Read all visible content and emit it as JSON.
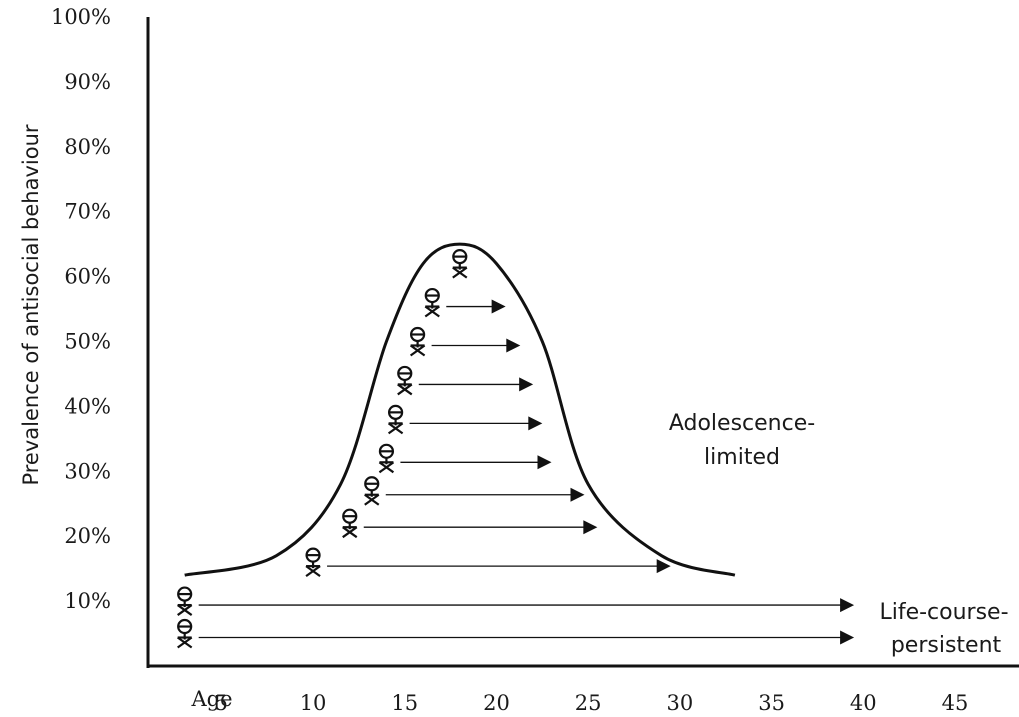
{
  "chart_data": {
    "type": "line",
    "ylabel": "Prevalence of antisocial behaviour",
    "y_ticks": [
      "10%",
      "20%",
      "30%",
      "40%",
      "50%",
      "60%",
      "70%",
      "80%",
      "90%",
      "100%"
    ],
    "ylim": [
      0,
      100
    ],
    "x_prefix": "Age",
    "x_ticks": [
      "5",
      "10",
      "15",
      "20",
      "25",
      "30",
      "35",
      "40",
      "45"
    ],
    "xlim": [
      1,
      48
    ],
    "grid": false,
    "series": [
      {
        "name": "Adolescence-limited",
        "curve": [
          {
            "x": 3,
            "y": 14
          },
          {
            "x": 8,
            "y": 17
          },
          {
            "x": 11.5,
            "y": 28
          },
          {
            "x": 14,
            "y": 50
          },
          {
            "x": 16,
            "y": 62
          },
          {
            "x": 18,
            "y": 65
          },
          {
            "x": 20,
            "y": 62
          },
          {
            "x": 22.5,
            "y": 50
          },
          {
            "x": 25,
            "y": 28
          },
          {
            "x": 29,
            "y": 17
          },
          {
            "x": 33,
            "y": 14
          }
        ]
      }
    ],
    "individuals": [
      {
        "onset": 3,
        "level": 3,
        "end": 39.5
      },
      {
        "onset": 3,
        "level": 8,
        "end": 39.5
      },
      {
        "onset": 10,
        "level": 14,
        "end": 29.5
      },
      {
        "onset": 12,
        "level": 20,
        "end": 25.5
      },
      {
        "onset": 13.2,
        "level": 25,
        "end": 24.8
      },
      {
        "onset": 14,
        "level": 30,
        "end": 23
      },
      {
        "onset": 14.5,
        "level": 36,
        "end": 22.5
      },
      {
        "onset": 15,
        "level": 42,
        "end": 22
      },
      {
        "onset": 15.7,
        "level": 48,
        "end": 21.3
      },
      {
        "onset": 16.5,
        "level": 54,
        "end": 20.5
      },
      {
        "onset": 18,
        "level": 60,
        "end": null
      }
    ],
    "annotations": {
      "adolescence_limited": [
        "Adolescence-",
        "limited"
      ],
      "life_course_persistent": [
        "Life-course-",
        "persistent"
      ]
    }
  }
}
